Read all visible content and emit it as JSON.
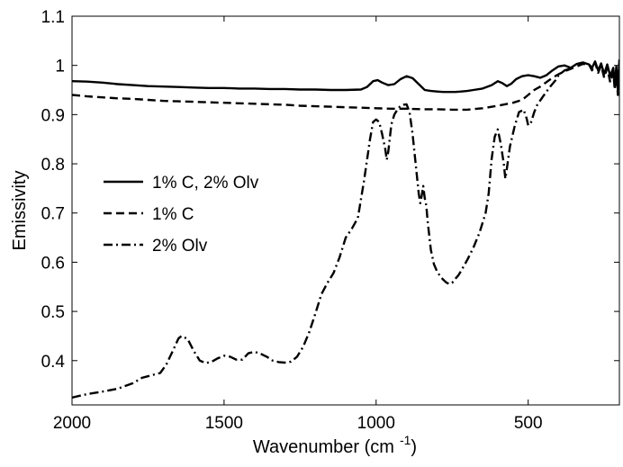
{
  "chart_data": {
    "type": "line",
    "title": "",
    "xlabel": "Wavenumber (cm",
    "xlabel_superscript": "-1",
    "xlabel_suffix": ")",
    "ylabel": "Emissivity",
    "xlim": [
      2000,
      200
    ],
    "ylim": [
      0.31,
      1.1
    ],
    "x_reversed": true,
    "xticks": [
      2000,
      1500,
      1000,
      500
    ],
    "xtick_labels": [
      "2000",
      "1500",
      "1000",
      "500"
    ],
    "yticks": [
      0.4,
      0.5,
      0.6,
      0.7,
      0.8,
      0.9,
      1.0,
      1.1
    ],
    "ytick_labels": [
      "0.4",
      "0.5",
      "0.6",
      "0.7",
      "0.8",
      "0.9",
      "1",
      "1.1"
    ],
    "grid": false,
    "legend_position": "left-middle",
    "series": [
      {
        "name": "1% C, 2% Olv",
        "style": "solid",
        "color": "#000000",
        "points": [
          [
            2000,
            0.968
          ],
          [
            1950,
            0.967
          ],
          [
            1900,
            0.965
          ],
          [
            1850,
            0.962
          ],
          [
            1800,
            0.96
          ],
          [
            1750,
            0.958
          ],
          [
            1700,
            0.957
          ],
          [
            1650,
            0.956
          ],
          [
            1600,
            0.955
          ],
          [
            1550,
            0.954
          ],
          [
            1500,
            0.954
          ],
          [
            1450,
            0.953
          ],
          [
            1400,
            0.953
          ],
          [
            1350,
            0.952
          ],
          [
            1300,
            0.952
          ],
          [
            1250,
            0.951
          ],
          [
            1200,
            0.951
          ],
          [
            1150,
            0.95
          ],
          [
            1100,
            0.95
          ],
          [
            1050,
            0.951
          ],
          [
            1030,
            0.956
          ],
          [
            1010,
            0.968
          ],
          [
            995,
            0.97
          ],
          [
            980,
            0.965
          ],
          [
            960,
            0.96
          ],
          [
            940,
            0.962
          ],
          [
            920,
            0.972
          ],
          [
            900,
            0.978
          ],
          [
            880,
            0.974
          ],
          [
            860,
            0.962
          ],
          [
            840,
            0.95
          ],
          [
            820,
            0.948
          ],
          [
            800,
            0.947
          ],
          [
            780,
            0.946
          ],
          [
            760,
            0.946
          ],
          [
            740,
            0.946
          ],
          [
            720,
            0.947
          ],
          [
            700,
            0.948
          ],
          [
            680,
            0.95
          ],
          [
            650,
            0.953
          ],
          [
            620,
            0.96
          ],
          [
            600,
            0.968
          ],
          [
            585,
            0.964
          ],
          [
            570,
            0.958
          ],
          [
            555,
            0.963
          ],
          [
            540,
            0.972
          ],
          [
            520,
            0.978
          ],
          [
            500,
            0.98
          ],
          [
            480,
            0.978
          ],
          [
            460,
            0.975
          ],
          [
            440,
            0.98
          ],
          [
            420,
            0.99
          ],
          [
            400,
            0.998
          ],
          [
            380,
            1.0
          ],
          [
            360,
            0.995
          ],
          [
            340,
            1.003
          ],
          [
            320,
            1.006
          ],
          [
            300,
            1.002
          ],
          [
            290,
            0.995
          ],
          [
            280,
            1.008
          ],
          [
            270,
            0.99
          ],
          [
            260,
            1.004
          ],
          [
            250,
            0.982
          ],
          [
            240,
            1.002
          ],
          [
            230,
            0.978
          ],
          [
            220,
            0.995
          ],
          [
            215,
            0.96
          ],
          [
            210,
            0.998
          ],
          [
            205,
            0.95
          ],
          [
            200,
            1.012
          ]
        ]
      },
      {
        "name": "1% C",
        "style": "dashed",
        "color": "#000000",
        "points": [
          [
            2000,
            0.94
          ],
          [
            1950,
            0.937
          ],
          [
            1900,
            0.935
          ],
          [
            1850,
            0.933
          ],
          [
            1800,
            0.932
          ],
          [
            1750,
            0.93
          ],
          [
            1700,
            0.928
          ],
          [
            1650,
            0.927
          ],
          [
            1600,
            0.926
          ],
          [
            1550,
            0.925
          ],
          [
            1500,
            0.924
          ],
          [
            1450,
            0.923
          ],
          [
            1400,
            0.922
          ],
          [
            1350,
            0.921
          ],
          [
            1300,
            0.92
          ],
          [
            1250,
            0.918
          ],
          [
            1200,
            0.917
          ],
          [
            1150,
            0.916
          ],
          [
            1100,
            0.915
          ],
          [
            1050,
            0.914
          ],
          [
            1000,
            0.913
          ],
          [
            950,
            0.912
          ],
          [
            900,
            0.912
          ],
          [
            850,
            0.911
          ],
          [
            800,
            0.911
          ],
          [
            750,
            0.91
          ],
          [
            700,
            0.91
          ],
          [
            650,
            0.913
          ],
          [
            600,
            0.918
          ],
          [
            550,
            0.924
          ],
          [
            520,
            0.93
          ],
          [
            500,
            0.94
          ],
          [
            480,
            0.95
          ],
          [
            460,
            0.957
          ],
          [
            440,
            0.966
          ],
          [
            420,
            0.975
          ],
          [
            400,
            0.982
          ],
          [
            380,
            0.988
          ],
          [
            360,
            0.993
          ],
          [
            340,
            0.998
          ],
          [
            320,
            1.003
          ],
          [
            300,
            1.002
          ],
          [
            290,
            0.99
          ],
          [
            280,
            1.006
          ],
          [
            270,
            0.985
          ],
          [
            260,
            1.0
          ],
          [
            250,
            0.975
          ],
          [
            240,
            0.995
          ],
          [
            230,
            0.965
          ],
          [
            220,
            0.985
          ],
          [
            215,
            0.95
          ],
          [
            210,
            0.99
          ],
          [
            205,
            0.94
          ],
          [
            200,
            0.995
          ]
        ]
      },
      {
        "name": "2% Olv",
        "style": "dashdot",
        "color": "#000000",
        "points": [
          [
            2000,
            0.325
          ],
          [
            1950,
            0.332
          ],
          [
            1900,
            0.337
          ],
          [
            1850,
            0.343
          ],
          [
            1800,
            0.354
          ],
          [
            1770,
            0.365
          ],
          [
            1740,
            0.37
          ],
          [
            1710,
            0.375
          ],
          [
            1690,
            0.392
          ],
          [
            1670,
            0.418
          ],
          [
            1650,
            0.445
          ],
          [
            1640,
            0.45
          ],
          [
            1620,
            0.444
          ],
          [
            1600,
            0.42
          ],
          [
            1580,
            0.4
          ],
          [
            1560,
            0.395
          ],
          [
            1540,
            0.398
          ],
          [
            1520,
            0.405
          ],
          [
            1500,
            0.41
          ],
          [
            1480,
            0.408
          ],
          [
            1460,
            0.402
          ],
          [
            1440,
            0.402
          ],
          [
            1420,
            0.415
          ],
          [
            1400,
            0.418
          ],
          [
            1380,
            0.414
          ],
          [
            1360,
            0.408
          ],
          [
            1340,
            0.4
          ],
          [
            1320,
            0.397
          ],
          [
            1300,
            0.396
          ],
          [
            1280,
            0.398
          ],
          [
            1260,
            0.408
          ],
          [
            1240,
            0.428
          ],
          [
            1220,
            0.458
          ],
          [
            1200,
            0.495
          ],
          [
            1180,
            0.535
          ],
          [
            1160,
            0.558
          ],
          [
            1140,
            0.578
          ],
          [
            1120,
            0.61
          ],
          [
            1100,
            0.65
          ],
          [
            1080,
            0.668
          ],
          [
            1060,
            0.69
          ],
          [
            1040,
            0.765
          ],
          [
            1020,
            0.85
          ],
          [
            1010,
            0.885
          ],
          [
            1000,
            0.89
          ],
          [
            990,
            0.885
          ],
          [
            980,
            0.86
          ],
          [
            970,
            0.83
          ],
          [
            965,
            0.808
          ],
          [
            960,
            0.825
          ],
          [
            950,
            0.88
          ],
          [
            940,
            0.9
          ],
          [
            930,
            0.91
          ],
          [
            920,
            0.918
          ],
          [
            910,
            0.92
          ],
          [
            900,
            0.921
          ],
          [
            890,
            0.905
          ],
          [
            880,
            0.86
          ],
          [
            870,
            0.8
          ],
          [
            860,
            0.74
          ],
          [
            855,
            0.72
          ],
          [
            850,
            0.735
          ],
          [
            845,
            0.755
          ],
          [
            840,
            0.73
          ],
          [
            835,
            0.715
          ],
          [
            830,
            0.68
          ],
          [
            820,
            0.625
          ],
          [
            810,
            0.596
          ],
          [
            800,
            0.582
          ],
          [
            790,
            0.572
          ],
          [
            780,
            0.565
          ],
          [
            770,
            0.559
          ],
          [
            760,
            0.556
          ],
          [
            750,
            0.558
          ],
          [
            740,
            0.566
          ],
          [
            730,
            0.573
          ],
          [
            720,
            0.583
          ],
          [
            700,
            0.605
          ],
          [
            680,
            0.63
          ],
          [
            660,
            0.66
          ],
          [
            640,
            0.7
          ],
          [
            630,
            0.74
          ],
          [
            620,
            0.81
          ],
          [
            610,
            0.855
          ],
          [
            600,
            0.87
          ],
          [
            590,
            0.84
          ],
          [
            580,
            0.8
          ],
          [
            575,
            0.77
          ],
          [
            570,
            0.79
          ],
          [
            560,
            0.835
          ],
          [
            545,
            0.875
          ],
          [
            530,
            0.905
          ],
          [
            515,
            0.91
          ],
          [
            505,
            0.892
          ],
          [
            500,
            0.878
          ],
          [
            490,
            0.885
          ],
          [
            480,
            0.905
          ],
          [
            470,
            0.92
          ],
          [
            450,
            0.938
          ],
          [
            430,
            0.955
          ],
          [
            410,
            0.97
          ],
          [
            400,
            0.98
          ],
          [
            390,
            0.985
          ],
          [
            380,
            0.99
          ],
          [
            370,
            0.992
          ],
          [
            360,
            0.995
          ]
        ]
      }
    ]
  }
}
